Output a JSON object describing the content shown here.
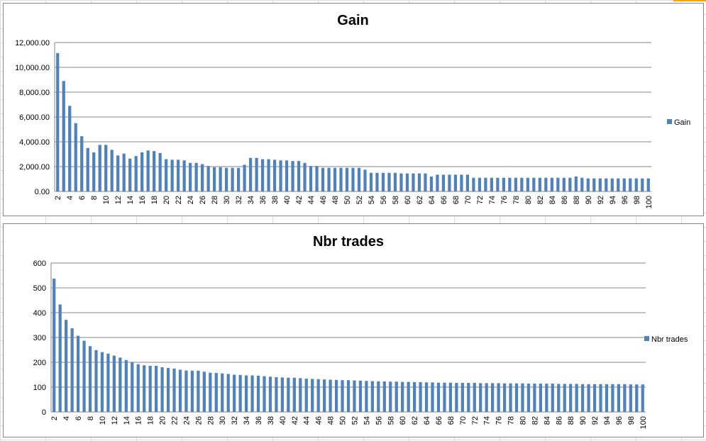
{
  "colors": {
    "bar": "#4f81bd",
    "gridline": "#868686",
    "axis": "#868686",
    "border": "#868686"
  },
  "chart_data": [
    {
      "type": "bar",
      "title": "Gain",
      "legend": "right",
      "grid": true,
      "xlabel": "",
      "ylabel": "",
      "ylim": [
        0,
        12000
      ],
      "yticks": [
        "0.00",
        "2,000.00",
        "4,000.00",
        "6,000.00",
        "8,000.00",
        "10,000.00",
        "12,000.00"
      ],
      "categories": [
        2,
        3,
        4,
        5,
        6,
        7,
        8,
        9,
        10,
        11,
        12,
        13,
        14,
        15,
        16,
        17,
        18,
        19,
        20,
        21,
        22,
        23,
        24,
        25,
        26,
        27,
        28,
        29,
        30,
        31,
        32,
        33,
        34,
        35,
        36,
        37,
        38,
        39,
        40,
        41,
        42,
        43,
        44,
        45,
        46,
        47,
        48,
        49,
        50,
        51,
        52,
        53,
        54,
        55,
        56,
        57,
        58,
        59,
        60,
        61,
        62,
        63,
        64,
        65,
        66,
        67,
        68,
        69,
        70,
        71,
        72,
        73,
        74,
        75,
        76,
        77,
        78,
        79,
        80,
        81,
        82,
        83,
        84,
        85,
        86,
        87,
        88,
        89,
        90,
        91,
        92,
        93,
        94,
        95,
        96,
        97,
        98,
        99,
        100
      ],
      "series": [
        {
          "name": "Gain",
          "values": [
            11150,
            8900,
            6900,
            5500,
            4450,
            3500,
            3150,
            3750,
            3750,
            3350,
            2900,
            3050,
            2650,
            2850,
            3150,
            3300,
            3250,
            3100,
            2600,
            2550,
            2550,
            2500,
            2300,
            2300,
            2200,
            2050,
            1950,
            1950,
            1900,
            1900,
            1900,
            2150,
            2700,
            2700,
            2600,
            2600,
            2550,
            2500,
            2500,
            2450,
            2450,
            2300,
            2050,
            2050,
            1900,
            1900,
            1900,
            1900,
            1900,
            1900,
            1900,
            1750,
            1500,
            1500,
            1500,
            1500,
            1500,
            1450,
            1450,
            1450,
            1450,
            1450,
            1200,
            1350,
            1350,
            1350,
            1350,
            1350,
            1350,
            1100,
            1100,
            1100,
            1100,
            1100,
            1100,
            1100,
            1100,
            1100,
            1100,
            1100,
            1100,
            1100,
            1100,
            1100,
            1100,
            1100,
            1200,
            1100,
            1050,
            1050,
            1050,
            1050,
            1050,
            1050,
            1050,
            1050,
            1050,
            1050,
            1050
          ]
        }
      ]
    },
    {
      "type": "bar",
      "title": "Nbr trades",
      "legend": "right",
      "grid": true,
      "xlabel": "",
      "ylabel": "",
      "ylim": [
        0,
        600
      ],
      "yticks": [
        "0",
        "100",
        "200",
        "300",
        "400",
        "500",
        "600"
      ],
      "categories": [
        2,
        3,
        4,
        5,
        6,
        7,
        8,
        9,
        10,
        11,
        12,
        13,
        14,
        15,
        16,
        17,
        18,
        19,
        20,
        21,
        22,
        23,
        24,
        25,
        26,
        27,
        28,
        29,
        30,
        31,
        32,
        33,
        34,
        35,
        36,
        37,
        38,
        39,
        40,
        41,
        42,
        43,
        44,
        45,
        46,
        47,
        48,
        49,
        50,
        51,
        52,
        53,
        54,
        55,
        56,
        57,
        58,
        59,
        60,
        61,
        62,
        63,
        64,
        65,
        66,
        67,
        68,
        69,
        70,
        71,
        72,
        73,
        74,
        75,
        76,
        77,
        78,
        79,
        80,
        81,
        82,
        83,
        84,
        85,
        86,
        87,
        88,
        89,
        90,
        91,
        92,
        93,
        94,
        95,
        96,
        97,
        98,
        99,
        100
      ],
      "series": [
        {
          "name": "Nbr trades",
          "values": [
            537,
            433,
            371,
            337,
            307,
            287,
            265,
            249,
            241,
            235,
            227,
            219,
            209,
            200,
            192,
            188,
            186,
            186,
            180,
            177,
            175,
            170,
            167,
            166,
            166,
            162,
            158,
            157,
            155,
            153,
            150,
            149,
            147,
            147,
            146,
            144,
            142,
            140,
            139,
            138,
            138,
            136,
            134,
            133,
            132,
            131,
            130,
            129,
            128,
            128,
            127,
            126,
            125,
            124,
            123,
            123,
            122,
            122,
            121,
            121,
            120,
            120,
            119,
            119,
            118,
            118,
            118,
            117,
            117,
            117,
            117,
            116,
            116,
            116,
            116,
            115,
            115,
            115,
            115,
            114,
            114,
            114,
            114,
            114,
            113,
            113,
            113,
            113,
            112,
            112,
            112,
            112,
            112,
            112,
            112,
            112,
            111,
            111,
            111
          ]
        }
      ]
    }
  ]
}
